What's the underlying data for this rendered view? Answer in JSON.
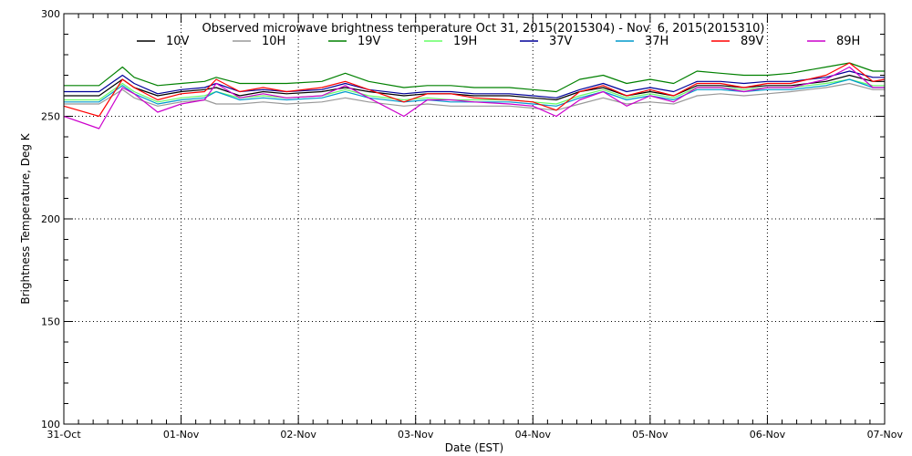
{
  "chart_data": {
    "type": "line",
    "title": "Observed microwave brightness temperature Oct 31, 2015(2015304) - Nov  6, 2015(2015310)",
    "xlabel": "Date (EST)",
    "ylabel": "Brightness Temperature, Deg K",
    "ylim": [
      100,
      300
    ],
    "xlim": [
      0,
      7
    ],
    "yticks": [
      100,
      150,
      200,
      250,
      300
    ],
    "xticks": [
      "31-Oct",
      "01-Nov",
      "02-Nov",
      "03-Nov",
      "04-Nov",
      "05-Nov",
      "06-Nov",
      "07-Nov"
    ],
    "grid": true,
    "legend_position": "top",
    "series": [
      {
        "name": "10V",
        "color": "#000000",
        "x": [
          0,
          0.3,
          0.5,
          0.6,
          0.8,
          1.0,
          1.2,
          1.3,
          1.5,
          1.7,
          1.9,
          2.2,
          2.4,
          2.6,
          2.9,
          3.1,
          3.3,
          3.5,
          3.8,
          4.0,
          4.2,
          4.4,
          4.6,
          4.8,
          5.0,
          5.2,
          5.4,
          5.6,
          5.8,
          6.0,
          6.2,
          6.5,
          6.7,
          6.9,
          7.0
        ],
        "y": [
          260,
          260,
          268,
          264,
          260,
          262,
          263,
          264,
          260,
          262,
          261,
          262,
          264,
          262,
          260,
          261,
          261,
          260,
          260,
          259,
          258,
          262,
          264,
          260,
          262,
          260,
          265,
          265,
          264,
          265,
          265,
          267,
          270,
          267,
          267
        ]
      },
      {
        "name": "10H",
        "color": "#999999",
        "x": [
          0,
          0.3,
          0.5,
          0.6,
          0.8,
          1.0,
          1.2,
          1.3,
          1.5,
          1.7,
          1.9,
          2.2,
          2.4,
          2.6,
          2.9,
          3.1,
          3.3,
          3.5,
          3.8,
          4.0,
          4.2,
          4.4,
          4.6,
          4.8,
          5.0,
          5.2,
          5.4,
          5.6,
          5.8,
          6.0,
          6.2,
          6.5,
          6.7,
          6.9,
          7.0
        ],
        "y": [
          256,
          256,
          263,
          259,
          255,
          257,
          258,
          256,
          256,
          257,
          256,
          257,
          259,
          257,
          255,
          256,
          255,
          255,
          255,
          254,
          253,
          256,
          259,
          256,
          257,
          256,
          260,
          261,
          260,
          261,
          262,
          264,
          266,
          263,
          263
        ]
      },
      {
        "name": "19V",
        "color": "#008000",
        "x": [
          0,
          0.3,
          0.5,
          0.6,
          0.8,
          1.0,
          1.2,
          1.3,
          1.5,
          1.7,
          1.9,
          2.2,
          2.4,
          2.6,
          2.9,
          3.1,
          3.3,
          3.5,
          3.8,
          4.0,
          4.2,
          4.4,
          4.6,
          4.8,
          5.0,
          5.2,
          5.4,
          5.6,
          5.8,
          6.0,
          6.2,
          6.5,
          6.7,
          6.9,
          7.0
        ],
        "y": [
          265,
          265,
          274,
          269,
          265,
          266,
          267,
          269,
          266,
          266,
          266,
          267,
          271,
          267,
          264,
          265,
          265,
          264,
          264,
          263,
          262,
          268,
          270,
          266,
          268,
          266,
          272,
          271,
          270,
          270,
          271,
          274,
          276,
          272,
          272
        ]
      },
      {
        "name": "19H",
        "color": "#66ff66",
        "x": [
          0,
          0.3,
          0.5,
          0.6,
          0.8,
          1.0,
          1.2,
          1.3,
          1.5,
          1.7,
          1.9,
          2.2,
          2.4,
          2.6,
          2.9,
          3.1,
          3.3,
          3.5,
          3.8,
          4.0,
          4.2,
          4.4,
          4.6,
          4.8,
          5.0,
          5.2,
          5.4,
          5.6,
          5.8,
          6.0,
          6.2,
          6.5,
          6.7,
          6.9,
          7.0
        ],
        "y": [
          258,
          258,
          266,
          262,
          257,
          259,
          260,
          262,
          259,
          260,
          259,
          260,
          263,
          260,
          258,
          259,
          258,
          258,
          258,
          257,
          256,
          260,
          263,
          259,
          261,
          259,
          264,
          264,
          263,
          264,
          264,
          266,
          268,
          265,
          265
        ]
      },
      {
        "name": "37V",
        "color": "#000099",
        "x": [
          0,
          0.3,
          0.5,
          0.6,
          0.8,
          1.0,
          1.2,
          1.3,
          1.5,
          1.7,
          1.9,
          2.2,
          2.4,
          2.6,
          2.9,
          3.1,
          3.3,
          3.5,
          3.8,
          4.0,
          4.2,
          4.4,
          4.6,
          4.8,
          5.0,
          5.2,
          5.4,
          5.6,
          5.8,
          6.0,
          6.2,
          6.5,
          6.7,
          6.9,
          7.0
        ],
        "y": [
          262,
          262,
          270,
          266,
          261,
          263,
          264,
          266,
          262,
          263,
          262,
          263,
          266,
          263,
          261,
          262,
          262,
          261,
          261,
          260,
          259,
          263,
          266,
          262,
          264,
          262,
          267,
          267,
          266,
          267,
          267,
          269,
          272,
          269,
          269
        ]
      },
      {
        "name": "37H",
        "color": "#0099cc",
        "x": [
          0,
          0.3,
          0.5,
          0.6,
          0.8,
          1.0,
          1.2,
          1.3,
          1.5,
          1.7,
          1.9,
          2.2,
          2.4,
          2.6,
          2.9,
          3.1,
          3.3,
          3.5,
          3.8,
          4.0,
          4.2,
          4.4,
          4.6,
          4.8,
          5.0,
          5.2,
          5.4,
          5.6,
          5.8,
          6.0,
          6.2,
          6.5,
          6.7,
          6.9,
          7.0
        ],
        "y": [
          257,
          257,
          265,
          261,
          256,
          258,
          259,
          262,
          258,
          259,
          258,
          259,
          262,
          259,
          257,
          258,
          257,
          257,
          257,
          256,
          255,
          259,
          262,
          258,
          260,
          258,
          263,
          263,
          262,
          263,
          263,
          265,
          268,
          264,
          264
        ]
      },
      {
        "name": "89V",
        "color": "#ff0000",
        "x": [
          0,
          0.3,
          0.5,
          0.6,
          0.8,
          1.0,
          1.2,
          1.3,
          1.5,
          1.7,
          1.9,
          2.2,
          2.4,
          2.6,
          2.9,
          3.1,
          3.3,
          3.5,
          3.8,
          4.0,
          4.2,
          4.4,
          4.6,
          4.8,
          5.0,
          5.2,
          5.4,
          5.6,
          5.8,
          6.0,
          6.2,
          6.5,
          6.7,
          6.9,
          7.0
        ],
        "y": [
          255,
          250,
          268,
          264,
          258,
          261,
          262,
          268,
          262,
          264,
          262,
          264,
          267,
          263,
          257,
          261,
          261,
          259,
          258,
          257,
          253,
          262,
          265,
          260,
          263,
          260,
          266,
          266,
          264,
          266,
          266,
          270,
          276,
          267,
          268
        ]
      },
      {
        "name": "89H",
        "color": "#cc00cc",
        "x": [
          0,
          0.3,
          0.5,
          0.6,
          0.8,
          1.0,
          1.2,
          1.3,
          1.5,
          1.7,
          1.9,
          2.2,
          2.4,
          2.6,
          2.9,
          3.1,
          3.3,
          3.5,
          3.8,
          4.0,
          4.2,
          4.4,
          4.6,
          4.8,
          5.0,
          5.2,
          5.4,
          5.6,
          5.8,
          6.0,
          6.2,
          6.5,
          6.7,
          6.9,
          7.0
        ],
        "y": [
          250,
          244,
          264,
          261,
          252,
          256,
          258,
          266,
          259,
          261,
          259,
          260,
          265,
          259,
          250,
          258,
          258,
          257,
          256,
          255,
          250,
          258,
          262,
          255,
          260,
          257,
          264,
          264,
          262,
          264,
          264,
          268,
          274,
          264,
          264
        ]
      }
    ]
  }
}
